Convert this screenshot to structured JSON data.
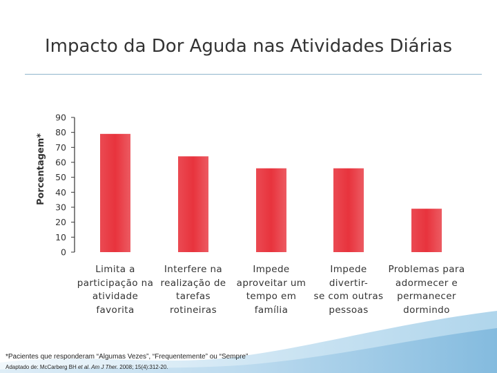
{
  "chart_data": {
    "type": "bar",
    "title": "Impacto da Dor Aguda nas Atividades Diárias",
    "ylabel": "Porcentagem*",
    "xlabel": "",
    "ylim": [
      0,
      90
    ],
    "yticks": [
      0,
      10,
      20,
      30,
      40,
      50,
      60,
      70,
      80,
      90
    ],
    "categories": [
      "Limita a participação na atividade favorita",
      "Interfere na realização de tarefas rotineiras",
      "Impede aproveitar um tempo em família",
      "Impede divertir-se com outras pessoas",
      "Problemas para adormecer e permanecer dormindo"
    ],
    "category_lines": [
      [
        "Limita a",
        "participação na",
        "atividade",
        "favorita"
      ],
      [
        "Interfere na",
        "realização de",
        "tarefas",
        "rotineiras"
      ],
      [
        "Impede",
        "aproveitar um",
        "tempo em",
        "família"
      ],
      [
        "Impede divertir-",
        "se com outras",
        "pessoas"
      ],
      [
        "Problemas para",
        "adormecer e",
        "permanecer",
        "dormindo"
      ]
    ],
    "values": [
      79,
      64,
      56,
      56,
      29
    ],
    "bar_color": "#e8333d",
    "grid": false
  },
  "footnote": "*Pacientes que responderam “Algumas Vezes”, “Frequentemente” ou “Sempre”",
  "source": {
    "prefix": "Adaptado de: McCarberg BH ",
    "italic": "et al. Am J Ther.",
    "suffix": " 2008; 15(4):312-20."
  }
}
